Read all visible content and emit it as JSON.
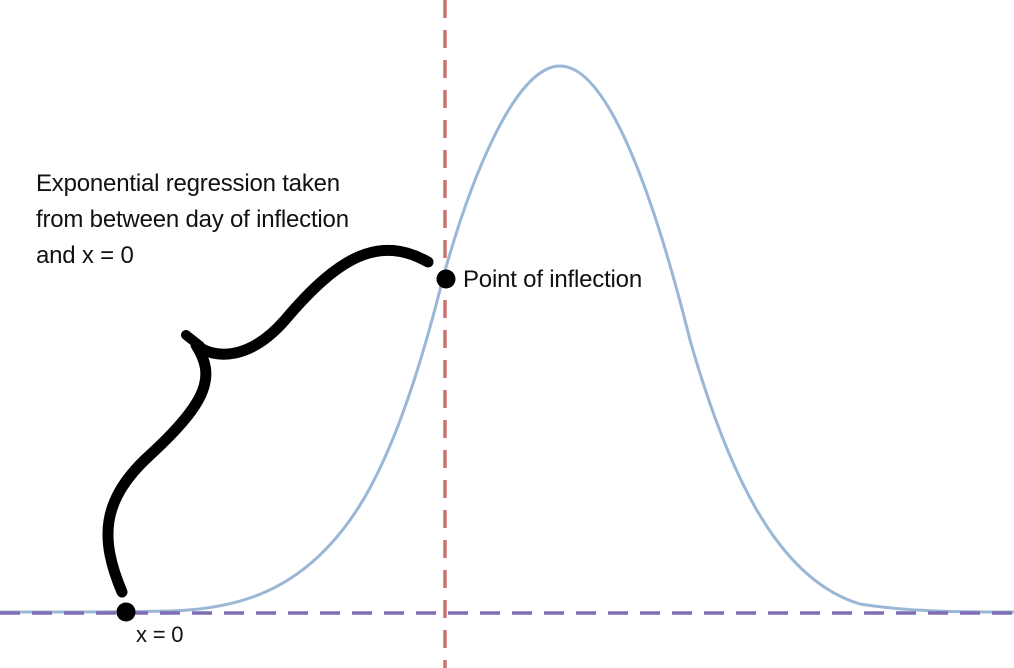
{
  "annotations": {
    "regression_note": {
      "lines": [
        "Exponential regression taken",
        "from between day of inflection",
        "and x = 0"
      ]
    },
    "inflection_label": "Point of inflection",
    "origin_label": "x = 0"
  },
  "colors": {
    "curve": "#9ab7d6",
    "vertical_line": "#cd7272",
    "baseline": "#7f6eb5",
    "brace": "#000000",
    "marker": "#000000"
  }
}
